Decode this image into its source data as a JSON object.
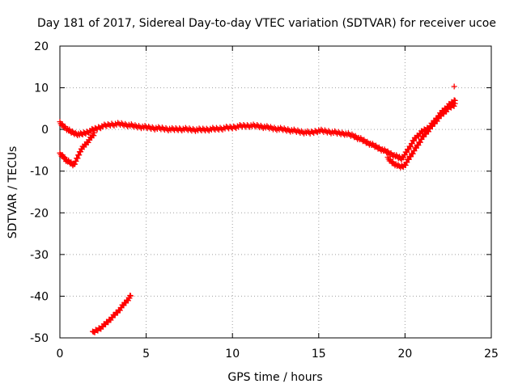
{
  "chart_data": {
    "type": "scatter",
    "title": "Day 181 of 2017, Sidereal Day-to-day VTEC variation (SDTVAR) for receiver ucoe",
    "xlabel": "GPS time / hours",
    "ylabel": "SDTVAR / TECUs",
    "xlim": [
      0,
      25
    ],
    "ylim": [
      -50,
      20
    ],
    "xticks": [
      0,
      5,
      10,
      15,
      20,
      25
    ],
    "yticks": [
      -50,
      -40,
      -30,
      -20,
      -10,
      0,
      10,
      20
    ],
    "grid": true,
    "marker": "+",
    "color": "#ff0000",
    "series": [
      {
        "name": "main-track",
        "x": [
          0.0,
          0.3,
          0.6,
          0.9,
          1.2,
          1.5,
          1.8,
          2.1,
          2.5,
          3.0,
          3.5,
          4.0,
          4.5,
          5.0,
          5.5,
          6.0,
          6.5,
          7.0,
          7.5,
          8.0,
          8.5,
          9.0,
          9.5,
          10.0,
          10.5,
          11.0,
          11.5,
          12.0,
          12.5,
          13.0,
          13.5,
          14.0,
          14.5,
          15.0,
          15.5,
          16.0,
          16.5,
          17.0,
          17.5,
          18.0,
          18.5,
          19.0,
          19.5,
          19.8,
          20.0,
          20.3,
          20.6,
          21.0,
          21.4,
          21.8,
          22.2,
          22.6,
          22.9
        ],
        "y": [
          1.5,
          0.5,
          -0.5,
          -1.0,
          -1.2,
          -0.8,
          -0.3,
          0.2,
          0.8,
          1.2,
          1.3,
          1.0,
          0.7,
          0.5,
          0.3,
          0.2,
          0.0,
          0.1,
          0.0,
          -0.1,
          0.0,
          0.1,
          0.3,
          0.5,
          0.8,
          0.9,
          0.8,
          0.5,
          0.2,
          0.0,
          -0.3,
          -0.6,
          -0.8,
          -0.3,
          -0.5,
          -0.8,
          -1.0,
          -1.5,
          -2.5,
          -3.5,
          -4.5,
          -5.5,
          -6.5,
          -7.0,
          -6.0,
          -4.0,
          -2.0,
          -0.5,
          0.5,
          2.5,
          4.5,
          6.0,
          7.0
        ]
      },
      {
        "name": "lower-track-end",
        "x": [
          19.0,
          19.3,
          19.6,
          19.8,
          20.0,
          20.3,
          20.7,
          21.0,
          21.5,
          22.0,
          22.5,
          22.9
        ],
        "y": [
          -7.0,
          -8.0,
          -8.8,
          -9.0,
          -8.5,
          -6.5,
          -4.0,
          -2.0,
          0.5,
          3.0,
          5.0,
          6.0
        ]
      },
      {
        "name": "lower-track-start",
        "x": [
          0.0,
          0.2,
          0.4,
          0.6,
          0.8,
          1.0,
          1.2,
          1.4,
          1.6,
          1.8,
          2.0
        ],
        "y": [
          -6.0,
          -6.5,
          -7.5,
          -8.0,
          -8.5,
          -7.0,
          -5.0,
          -4.0,
          -3.0,
          -2.0,
          -1.0
        ]
      },
      {
        "name": "outlier-segment",
        "x": [
          1.9,
          2.2,
          2.5,
          2.8,
          3.1,
          3.4,
          3.7,
          4.0,
          4.1
        ],
        "y": [
          -48.8,
          -48.0,
          -47.2,
          -46.0,
          -44.8,
          -43.5,
          -42.0,
          -40.5,
          -40.0
        ]
      },
      {
        "name": "isolated-point",
        "x": [
          22.85
        ],
        "y": [
          10.3
        ]
      }
    ]
  }
}
